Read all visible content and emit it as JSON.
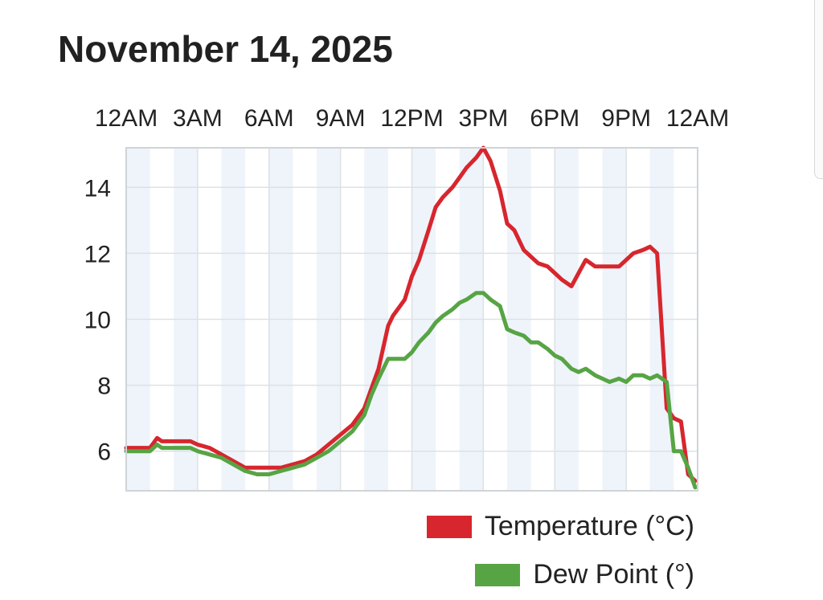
{
  "page": {
    "title": "November 14, 2025"
  },
  "chart_data": {
    "type": "line",
    "title": "November 14, 2025",
    "xlabel": "",
    "ylabel": "",
    "x_unit": "hours after midnight",
    "x_ticks": [
      {
        "x": 0,
        "label": "12AM"
      },
      {
        "x": 3,
        "label": "3AM"
      },
      {
        "x": 6,
        "label": "6AM"
      },
      {
        "x": 9,
        "label": "9AM"
      },
      {
        "x": 12,
        "label": "12PM"
      },
      {
        "x": 15,
        "label": "3PM"
      },
      {
        "x": 18,
        "label": "6PM"
      },
      {
        "x": 21,
        "label": "9PM"
      },
      {
        "x": 24,
        "label": "12AM"
      }
    ],
    "y_ticks": [
      6,
      8,
      10,
      12,
      14
    ],
    "xlim": [
      0,
      24
    ],
    "ylim": [
      4.8,
      15.2
    ],
    "grid": true,
    "legend_position": "bottom-right",
    "series": [
      {
        "name": "Temperature (°C)",
        "color": "#d7262e",
        "x": [
          0,
          1,
          1.3,
          1.5,
          2,
          2.7,
          3,
          3.5,
          4,
          4.5,
          5,
          5.5,
          6,
          6.5,
          7,
          7.5,
          8,
          8.5,
          9,
          9.5,
          10,
          10.3,
          10.6,
          11,
          11.2,
          11.5,
          11.7,
          12,
          12.3,
          12.7,
          13,
          13.3,
          13.7,
          14,
          14.3,
          14.7,
          15,
          15.3,
          15.7,
          16,
          16.3,
          16.7,
          17,
          17.3,
          17.7,
          18,
          18.3,
          18.7,
          19,
          19.3,
          19.7,
          20,
          20.3,
          20.7,
          21,
          21.3,
          21.7,
          22,
          22.3,
          22.7,
          23,
          23.3,
          23.6,
          23.9
        ],
        "values": [
          6.1,
          6.1,
          6.4,
          6.3,
          6.3,
          6.3,
          6.2,
          6.1,
          5.9,
          5.7,
          5.5,
          5.5,
          5.5,
          5.5,
          5.6,
          5.7,
          5.9,
          6.2,
          6.5,
          6.8,
          7.3,
          7.9,
          8.5,
          9.8,
          10.1,
          10.4,
          10.6,
          11.3,
          11.8,
          12.7,
          13.4,
          13.7,
          14.0,
          14.3,
          14.6,
          14.9,
          15.2,
          14.8,
          13.9,
          12.9,
          12.7,
          12.1,
          11.9,
          11.7,
          11.6,
          11.4,
          11.2,
          11.0,
          11.4,
          11.8,
          11.6,
          11.6,
          11.6,
          11.6,
          11.8,
          12.0,
          12.1,
          12.2,
          12.0,
          7.3,
          7.0,
          6.9,
          5.3,
          5.1
        ]
      },
      {
        "name": "Dew Point (°)",
        "color": "#57a444",
        "x": [
          0,
          1,
          1.3,
          1.5,
          2,
          2.7,
          3,
          3.5,
          4,
          4.5,
          5,
          5.5,
          6,
          6.5,
          7,
          7.5,
          8,
          8.5,
          9,
          9.5,
          10,
          10.3,
          10.6,
          11,
          11.3,
          11.7,
          12,
          12.3,
          12.7,
          13,
          13.3,
          13.7,
          14,
          14.3,
          14.7,
          15,
          15.3,
          15.7,
          16,
          16.3,
          16.7,
          17,
          17.3,
          17.7,
          18,
          18.3,
          18.7,
          19,
          19.3,
          19.7,
          20,
          20.3,
          20.7,
          21,
          21.3,
          21.7,
          22,
          22.3,
          22.7,
          23,
          23.3,
          23.6,
          23.9
        ],
        "values": [
          6.0,
          6.0,
          6.2,
          6.1,
          6.1,
          6.1,
          6.0,
          5.9,
          5.8,
          5.6,
          5.4,
          5.3,
          5.3,
          5.4,
          5.5,
          5.6,
          5.8,
          6.0,
          6.3,
          6.6,
          7.1,
          7.7,
          8.2,
          8.8,
          8.8,
          8.8,
          9.0,
          9.3,
          9.6,
          9.9,
          10.1,
          10.3,
          10.5,
          10.6,
          10.8,
          10.8,
          10.6,
          10.4,
          9.7,
          9.6,
          9.5,
          9.3,
          9.3,
          9.1,
          8.9,
          8.8,
          8.5,
          8.4,
          8.5,
          8.3,
          8.2,
          8.1,
          8.2,
          8.1,
          8.3,
          8.3,
          8.2,
          8.3,
          8.1,
          6.0,
          6.0,
          5.5,
          4.9
        ]
      }
    ]
  }
}
